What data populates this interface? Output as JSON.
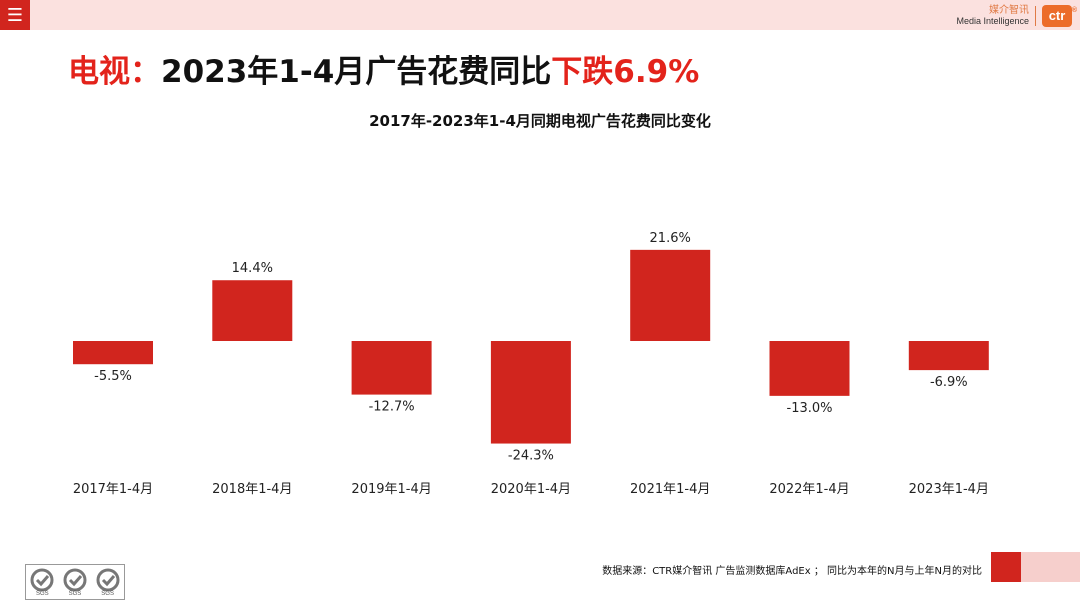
{
  "header": {
    "menu_icon": "menu-icon",
    "brand_cn": "媒介智讯",
    "brand_en": "Media Intelligence",
    "brand_logo": "ctr",
    "brand_logo_mark": "®"
  },
  "title": {
    "prefix": "电视：",
    "middle": "2023年1-4月广告花费同比",
    "highlight": "下跌6.9%"
  },
  "colors": {
    "bar": "#d1251e",
    "accent": "#e3231b",
    "topbar": "#fbe1df"
  },
  "chart_data": {
    "type": "bar",
    "title": "2017年-2023年1-4月同期电视广告花费同比变化",
    "categories": [
      "2017年1-4月",
      "2018年1-4月",
      "2019年1-4月",
      "2020年1-4月",
      "2021年1-4月",
      "2022年1-4月",
      "2023年1-4月"
    ],
    "values": [
      -5.5,
      14.4,
      -12.7,
      -24.3,
      21.6,
      -13.0,
      -6.9
    ],
    "data_labels": [
      "-5.5%",
      "14.4%",
      "-12.7%",
      "-24.3%",
      "21.6%",
      "-13.0%",
      "-6.9%"
    ],
    "unit": "%",
    "grid": false,
    "legend": "none"
  },
  "footer": {
    "source": "数据来源：CTR媒介智讯 广告监测数据库AdEx ； 同比为本年的N月与上年N月的对比",
    "cert_label": "SGS"
  }
}
